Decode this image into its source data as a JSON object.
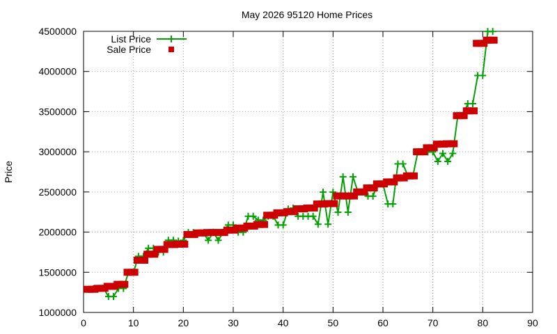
{
  "chart_data": {
    "type": "line",
    "title": "May 2026 95120 Home Prices",
    "xlabel": "",
    "ylabel": "Price",
    "xlim": [
      0,
      90
    ],
    "ylim": [
      1000000,
      4500000
    ],
    "x_ticks": [
      0,
      10,
      20,
      30,
      40,
      50,
      60,
      70,
      80,
      90
    ],
    "y_ticks": [
      1000000,
      1500000,
      2000000,
      2500000,
      3000000,
      3500000,
      4000000,
      4500000
    ],
    "grid": true,
    "legend_position": "top-left",
    "series": [
      {
        "name": "List Price",
        "color": "#00a000",
        "style": "line-with-plus-markers",
        "values": [
          [
            1,
            1288000
          ],
          [
            2,
            1295000
          ],
          [
            3,
            1298000
          ],
          [
            4,
            1300000
          ],
          [
            5,
            1198000
          ],
          [
            6,
            1198000
          ],
          [
            7,
            1299000
          ],
          [
            8,
            1299000
          ],
          [
            9,
            1499000
          ],
          [
            10,
            1499000
          ],
          [
            11,
            1699000
          ],
          [
            12,
            1699000
          ],
          [
            13,
            1799000
          ],
          [
            14,
            1799000
          ],
          [
            15,
            1750000
          ],
          [
            16,
            1750000
          ],
          [
            17,
            1899000
          ],
          [
            18,
            1899000
          ],
          [
            19,
            1888000
          ],
          [
            20,
            1898000
          ],
          [
            21,
            1995000
          ],
          [
            22,
            1995000
          ],
          [
            23,
            1988000
          ],
          [
            24,
            1988000
          ],
          [
            25,
            1898000
          ],
          [
            26,
            1998000
          ],
          [
            27,
            1898000
          ],
          [
            28,
            1998000
          ],
          [
            29,
            2088000
          ],
          [
            30,
            2088000
          ],
          [
            31,
            1998000
          ],
          [
            32,
            1998000
          ],
          [
            33,
            2198000
          ],
          [
            34,
            2198000
          ],
          [
            35,
            2149000
          ],
          [
            36,
            2149000
          ],
          [
            37,
            2198000
          ],
          [
            38,
            2198000
          ],
          [
            39,
            2088000
          ],
          [
            40,
            2088000
          ],
          [
            41,
            2288000
          ],
          [
            42,
            2298000
          ],
          [
            43,
            2198000
          ],
          [
            44,
            2198000
          ],
          [
            45,
            2198000
          ],
          [
            46,
            2198000
          ],
          [
            47,
            2098000
          ],
          [
            48,
            2498000
          ],
          [
            49,
            2098000
          ],
          [
            50,
            2498000
          ],
          [
            51,
            2248000
          ],
          [
            52,
            2688000
          ],
          [
            53,
            2248000
          ],
          [
            54,
            2688000
          ],
          [
            55,
            2498000
          ],
          [
            56,
            2498000
          ],
          [
            57,
            2448000
          ],
          [
            58,
            2448000
          ],
          [
            59,
            2598000
          ],
          [
            60,
            2598000
          ],
          [
            61,
            2350000
          ],
          [
            62,
            2350000
          ],
          [
            63,
            2850000
          ],
          [
            64,
            2850000
          ],
          [
            65,
            2699000
          ],
          [
            66,
            2699000
          ],
          [
            67,
            2998000
          ],
          [
            68,
            2998000
          ],
          [
            69,
            2998000
          ],
          [
            70,
            2998000
          ],
          [
            71,
            2880000
          ],
          [
            72,
            2980000
          ],
          [
            73,
            2880000
          ],
          [
            74,
            2980000
          ],
          [
            75,
            3450000
          ],
          [
            76,
            3450000
          ],
          [
            77,
            3599000
          ],
          [
            78,
            3599000
          ],
          [
            79,
            3950000
          ],
          [
            80,
            3950000
          ],
          [
            81,
            4498000
          ],
          [
            82,
            4498000
          ]
        ]
      },
      {
        "name": "Sale Price",
        "color": "#cc0000",
        "style": "square-markers",
        "values": [
          [
            1,
            1288000
          ],
          [
            2,
            1288000
          ],
          [
            3,
            1300000
          ],
          [
            4,
            1300000
          ],
          [
            5,
            1325000
          ],
          [
            6,
            1325000
          ],
          [
            7,
            1350000
          ],
          [
            8,
            1350000
          ],
          [
            9,
            1500000
          ],
          [
            10,
            1500000
          ],
          [
            11,
            1650000
          ],
          [
            12,
            1650000
          ],
          [
            13,
            1725000
          ],
          [
            14,
            1725000
          ],
          [
            15,
            1785000
          ],
          [
            16,
            1785000
          ],
          [
            17,
            1845000
          ],
          [
            18,
            1845000
          ],
          [
            19,
            1850000
          ],
          [
            20,
            1850000
          ],
          [
            21,
            1970000
          ],
          [
            22,
            1970000
          ],
          [
            23,
            1990000
          ],
          [
            24,
            1990000
          ],
          [
            25,
            1995000
          ],
          [
            26,
            1995000
          ],
          [
            27,
            1995000
          ],
          [
            28,
            1995000
          ],
          [
            29,
            2025000
          ],
          [
            30,
            2025000
          ],
          [
            31,
            2050000
          ],
          [
            32,
            2050000
          ],
          [
            33,
            2075000
          ],
          [
            34,
            2075000
          ],
          [
            35,
            2095000
          ],
          [
            36,
            2095000
          ],
          [
            37,
            2210000
          ],
          [
            38,
            2210000
          ],
          [
            39,
            2240000
          ],
          [
            40,
            2240000
          ],
          [
            41,
            2255000
          ],
          [
            42,
            2255000
          ],
          [
            43,
            2290000
          ],
          [
            44,
            2290000
          ],
          [
            45,
            2300000
          ],
          [
            46,
            2300000
          ],
          [
            47,
            2350000
          ],
          [
            48,
            2350000
          ],
          [
            49,
            2355000
          ],
          [
            50,
            2355000
          ],
          [
            51,
            2450000
          ],
          [
            52,
            2450000
          ],
          [
            53,
            2450000
          ],
          [
            54,
            2450000
          ],
          [
            55,
            2500000
          ],
          [
            56,
            2500000
          ],
          [
            57,
            2550000
          ],
          [
            58,
            2550000
          ],
          [
            59,
            2600000
          ],
          [
            60,
            2600000
          ],
          [
            61,
            2625000
          ],
          [
            62,
            2625000
          ],
          [
            63,
            2675000
          ],
          [
            64,
            2675000
          ],
          [
            65,
            2700000
          ],
          [
            66,
            2700000
          ],
          [
            67,
            3000000
          ],
          [
            68,
            3000000
          ],
          [
            69,
            3050000
          ],
          [
            70,
            3050000
          ],
          [
            71,
            3095000
          ],
          [
            72,
            3095000
          ],
          [
            73,
            3100000
          ],
          [
            74,
            3100000
          ],
          [
            75,
            3450000
          ],
          [
            76,
            3450000
          ],
          [
            77,
            3510000
          ],
          [
            78,
            3510000
          ],
          [
            79,
            4350000
          ],
          [
            80,
            4350000
          ],
          [
            81,
            4390000
          ],
          [
            82,
            4390000
          ]
        ]
      }
    ]
  }
}
